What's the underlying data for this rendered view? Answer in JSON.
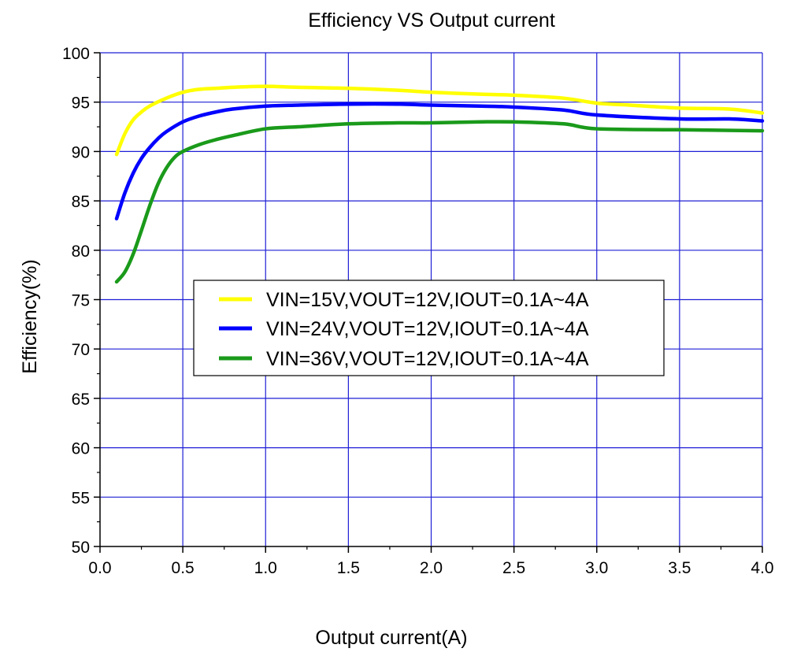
{
  "chart_data": {
    "type": "line",
    "title": "Efficiency VS Output current",
    "xlabel": "Output current(A)",
    "ylabel": "Efficiency(%)",
    "xlim": [
      0.0,
      4.0
    ],
    "ylim": [
      50,
      100
    ],
    "x_ticks": [
      "0.0",
      "0.5",
      "1.0",
      "1.5",
      "2.0",
      "2.5",
      "3.0",
      "3.5",
      "4.0"
    ],
    "y_ticks": [
      "50",
      "55",
      "60",
      "65",
      "70",
      "75",
      "80",
      "85",
      "90",
      "95",
      "100"
    ],
    "grid": true,
    "legend_position": "center-left",
    "series": [
      {
        "name": "VIN=15V,VOUT=12V,IOUT=0.1A~4A",
        "color": "#ffff00",
        "x": [
          0.1,
          0.15,
          0.2,
          0.25,
          0.3,
          0.4,
          0.5,
          0.6,
          0.7,
          0.8,
          1.0,
          1.2,
          1.5,
          1.8,
          2.0,
          2.3,
          2.5,
          2.8,
          3.0,
          3.2,
          3.5,
          3.8,
          4.0
        ],
        "y": [
          89.7,
          91.8,
          93.2,
          94.0,
          94.6,
          95.4,
          96.0,
          96.3,
          96.4,
          96.5,
          96.6,
          96.5,
          96.4,
          96.2,
          96.0,
          95.8,
          95.7,
          95.4,
          94.9,
          94.7,
          94.4,
          94.3,
          93.9
        ]
      },
      {
        "name": "VIN=24V,VOUT=12V,IOUT=0.1A~4A",
        "color": "#0000ff",
        "x": [
          0.1,
          0.15,
          0.2,
          0.25,
          0.3,
          0.35,
          0.4,
          0.5,
          0.6,
          0.7,
          0.8,
          1.0,
          1.2,
          1.5,
          1.8,
          2.0,
          2.3,
          2.5,
          2.8,
          3.0,
          3.5,
          3.8,
          4.0
        ],
        "y": [
          83.2,
          85.8,
          87.8,
          89.3,
          90.4,
          91.3,
          92.0,
          93.0,
          93.6,
          94.0,
          94.3,
          94.6,
          94.7,
          94.8,
          94.8,
          94.7,
          94.6,
          94.5,
          94.2,
          93.7,
          93.3,
          93.3,
          93.1
        ]
      },
      {
        "name": "VIN=36V,VOUT=12V,IOUT=0.1A~4A",
        "color": "#1a9a1a",
        "x": [
          0.1,
          0.15,
          0.2,
          0.25,
          0.3,
          0.35,
          0.4,
          0.45,
          0.5,
          0.6,
          0.7,
          0.8,
          1.0,
          1.2,
          1.5,
          1.8,
          2.0,
          2.3,
          2.5,
          2.8,
          3.0,
          3.5,
          4.0
        ],
        "y": [
          76.8,
          77.8,
          79.6,
          82.0,
          84.5,
          86.7,
          88.3,
          89.4,
          90.0,
          90.7,
          91.2,
          91.6,
          92.3,
          92.5,
          92.8,
          92.9,
          92.9,
          93.0,
          93.0,
          92.8,
          92.3,
          92.2,
          92.1
        ]
      }
    ]
  },
  "colors": {
    "grid": "#1f1fd6",
    "axis": "#000000",
    "background": "#ffffff"
  }
}
